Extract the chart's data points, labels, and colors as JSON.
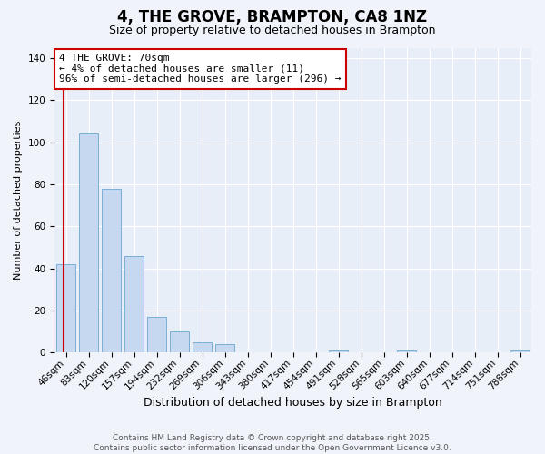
{
  "title": "4, THE GROVE, BRAMPTON, CA8 1NZ",
  "subtitle": "Size of property relative to detached houses in Brampton",
  "xlabel": "Distribution of detached houses by size in Brampton",
  "ylabel": "Number of detached properties",
  "categories": [
    "46sqm",
    "83sqm",
    "120sqm",
    "157sqm",
    "194sqm",
    "232sqm",
    "269sqm",
    "306sqm",
    "343sqm",
    "380sqm",
    "417sqm",
    "454sqm",
    "491sqm",
    "528sqm",
    "565sqm",
    "603sqm",
    "640sqm",
    "677sqm",
    "714sqm",
    "751sqm",
    "788sqm"
  ],
  "values": [
    42,
    104,
    78,
    46,
    17,
    10,
    5,
    4,
    0,
    0,
    0,
    0,
    1,
    0,
    0,
    1,
    0,
    0,
    0,
    0,
    1
  ],
  "bar_color": "#c5d8f0",
  "bar_edge_color": "#7aaed6",
  "annotation_text": "4 THE GROVE: 70sqm\n← 4% of detached houses are smaller (11)\n96% of semi-detached houses are larger (296) →",
  "annotation_box_color": "#ffffff",
  "annotation_box_edge": "#cc0000",
  "vline_color": "#cc0000",
  "vline_x": -0.1,
  "ylim": [
    0,
    145
  ],
  "yticks": [
    0,
    20,
    40,
    60,
    80,
    100,
    120,
    140
  ],
  "footer_line1": "Contains HM Land Registry data © Crown copyright and database right 2025.",
  "footer_line2": "Contains public sector information licensed under the Open Government Licence v3.0.",
  "background_color": "#f0f4fa",
  "plot_background": "#e8eef8",
  "grid_color": "#ffffff",
  "title_fontsize": 12,
  "subtitle_fontsize": 9,
  "xlabel_fontsize": 9,
  "ylabel_fontsize": 8,
  "tick_fontsize": 7.5,
  "annotation_fontsize": 8,
  "footer_fontsize": 6.5
}
